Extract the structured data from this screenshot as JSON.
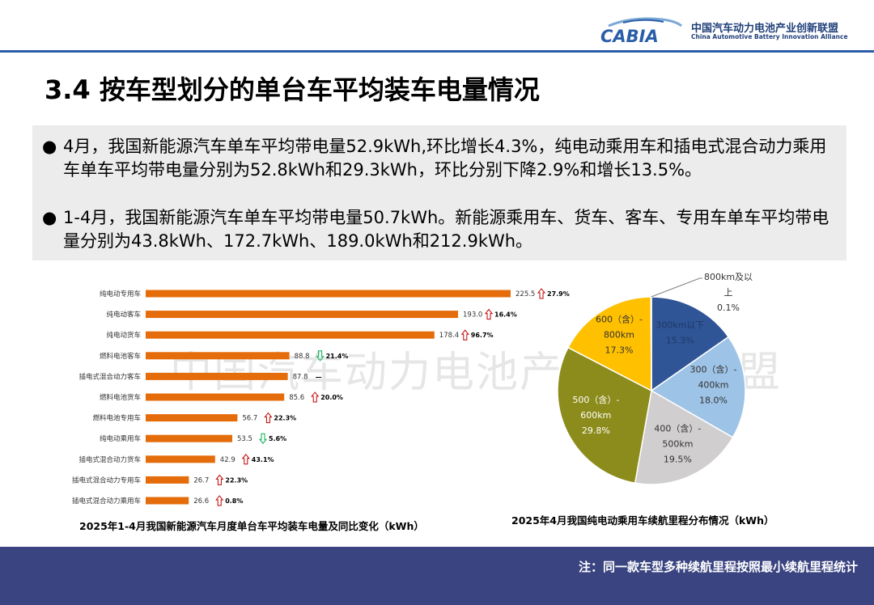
{
  "header": {
    "logo_text": "CABIA",
    "org_cn": "中国汽车动力电池产业创新联盟",
    "org_en": "China Automotive Battery Innovation Alliance"
  },
  "title": "3.4 按车型划分的单台车平均装车电量情况",
  "summary": {
    "bullet_symbol": "●",
    "points": [
      "4月，我国新能源汽车单车平均带电量52.9kWh,环比增长4.3%，纯电动乘用车和插电式混合动力乘用车单车平均带电量分别为52.8kWh和29.3kWh，环比分别下降2.9%和增长13.5%。",
      "1-4月，我国新能源汽车单车平均带电量50.7kWh。新能源乘用车、货车、客车、专用车单车平均带电量分别为43.8kWh、172.7kWh、189.0kWh和212.9kWh。"
    ]
  },
  "watermark": "中国汽车动力电池产业创新联盟",
  "colors": {
    "bar": "#e46c0a",
    "up": "#c00000",
    "down": "#00b050",
    "pie": [
      "#2f5597",
      "#9dc3e6",
      "#d0cece",
      "#8c8c1c",
      "#ffc000",
      "#1f3864"
    ],
    "footer": "#3a4480"
  },
  "chart_data": [
    {
      "type": "bar",
      "orientation": "horizontal",
      "title": "2025年1-4月我国新能源汽车月度单台车平均装车电量及同比变化（kWh）",
      "categories": [
        "纯电动专用车",
        "纯电动客车",
        "纯电动货车",
        "燃料电池客车",
        "插电式混合动力客车",
        "燃料电池货车",
        "燃料电池专用车",
        "纯电动乘用车",
        "插电式混合动力货车",
        "插电式混合动力专用车",
        "插电式混合动力乘用车"
      ],
      "values": [
        225.5,
        193.0,
        178.4,
        88.8,
        87.8,
        85.6,
        56.7,
        53.5,
        42.9,
        26.7,
        26.6
      ],
      "changes": [
        "27.9%",
        "16.4%",
        "96.7%",
        "21.4%",
        "—",
        "20.0%",
        "22.3%",
        "5.6%",
        "43.1%",
        "22.3%",
        "0.8%"
      ],
      "directions": [
        "up",
        "up",
        "up",
        "down",
        "none",
        "up",
        "up",
        "down",
        "up",
        "up",
        "up"
      ],
      "xlim": [
        0,
        240
      ]
    },
    {
      "type": "pie",
      "title": "2025年4月我国纯电动乘用车续航里程分布情况（kWh）",
      "labels": [
        "300km以下",
        "300（含）-400km",
        "400（含）-500km",
        "500（含）-600km",
        "600（含）-800km",
        "800km及以上"
      ],
      "values": [
        15.3,
        18.0,
        19.5,
        29.8,
        17.3,
        0.1
      ],
      "percent_labels": [
        "15.3%",
        "18.0%",
        "19.5%",
        "29.8%",
        "17.3%",
        "0.1%"
      ],
      "label_lines": [
        [
          "300km以下",
          "15.3%"
        ],
        [
          "300（含）-",
          "400km",
          "18.0%"
        ],
        [
          "400（含）-",
          "500km",
          "19.5%"
        ],
        [
          "500（含）-",
          "600km",
          "29.8%"
        ],
        [
          "600（含）-",
          "800km",
          "17.3%"
        ],
        [
          "800km及以",
          "上",
          "0.1%"
        ]
      ]
    }
  ],
  "footer_note": "注：同一款车型多种续航里程按照最小续航里程统计"
}
